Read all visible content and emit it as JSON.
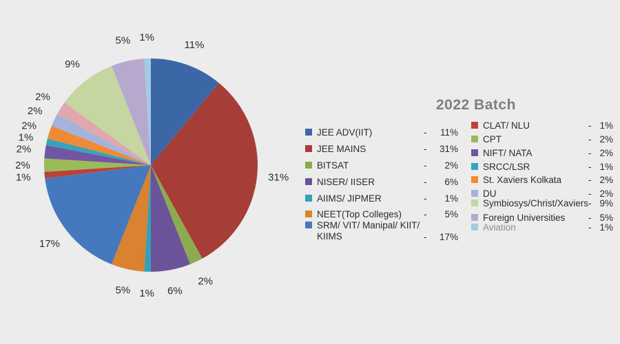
{
  "background_color": "#ECECEC",
  "title_color": "#7F7F7F",
  "legend": {
    "separator": "-",
    "text_color": "#2b2b2b"
  },
  "chart_data": {
    "type": "pie",
    "title": "2022 Batch",
    "start_angle_deg": 0,
    "direction": "clockwise",
    "value_suffix": "%",
    "legend_position": "right-two-columns",
    "slices": [
      {
        "label": "JEE ADV(IIT)",
        "value": 11,
        "color": "#3C67A6",
        "legend": "left"
      },
      {
        "label": "JEE MAINS",
        "value": 31,
        "color": "#A63D36",
        "legend": "left"
      },
      {
        "label": "BITSAT",
        "value": 2,
        "color": "#8CAB50",
        "legend": "left"
      },
      {
        "label": "NISER/ IISER",
        "value": 6,
        "color": "#6C5399",
        "legend": "left"
      },
      {
        "label": "AIIMS/ JIPMER",
        "value": 1,
        "color": "#35A0B8",
        "legend": "left"
      },
      {
        "label": "NEET(Top Colleges)",
        "value": 5,
        "color": "#D9822F",
        "legend": "left"
      },
      {
        "label": "SRM/ VIT/ Manipal/ KIIT/ KIIMS",
        "value": 17,
        "color": "#4678BE",
        "legend": "left"
      },
      {
        "label": "CLAT/ NLU",
        "value": 1,
        "color": "#B8433C",
        "legend": "right"
      },
      {
        "label": "CPT",
        "value": 2,
        "color": "#9BBB59",
        "legend": "right"
      },
      {
        "label": "NIFT/ NATA",
        "value": 2,
        "color": "#7156A2",
        "legend": "right"
      },
      {
        "label": "SRCC/LSR",
        "value": 1,
        "color": "#38A2BE",
        "legend": "right"
      },
      {
        "label": "St. Xaviers Kolkata",
        "value": 2,
        "color": "#EF8A36",
        "legend": "right"
      },
      {
        "label": "DU",
        "value": 2,
        "color": "#A5B3DB",
        "legend": "right"
      },
      {
        "label": "",
        "value": 2,
        "color": "#E2A7AE",
        "legend": "none"
      },
      {
        "label": "Symbiosys/Christ/Xaviers",
        "value": 9,
        "color": "#C6D6A0",
        "legend": "right"
      },
      {
        "label": "Foreign Universities",
        "value": 5,
        "color": "#B7A9CE",
        "legend": "right"
      },
      {
        "label": "Aviation",
        "value": 1,
        "color": "#A3CBE0",
        "legend": "right",
        "label_color": "#8E8E8E"
      }
    ]
  }
}
